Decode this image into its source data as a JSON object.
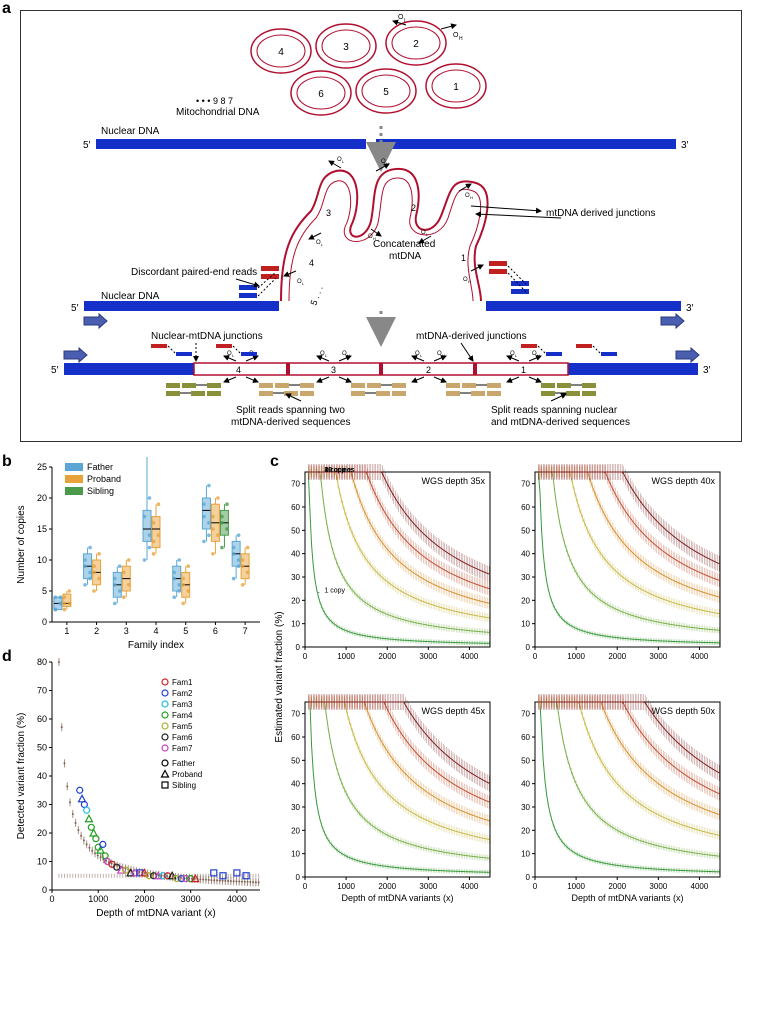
{
  "panelA": {
    "label": "a",
    "nuclearDNA": "Nuclear DNA",
    "mtDNA_text": "Mitochondrial DNA",
    "concatenated": "Concatenated mtDNA",
    "discordant": "Discordant paired-end reads",
    "mtJunctions": "mtDNA derived junctions",
    "nucMtJunctions": "Nuclear-mtDNA junctions",
    "mtDerivedJunctions": "mtDNA-derived junctions",
    "splitTwo": "Split reads spanning two mtDNA-derived sequences",
    "splitNuclear": "Split reads spanning nuclear and mtDNA-derived sequences",
    "five_prime": "5′",
    "three_prime": "3′",
    "OL": "O",
    "OL_sub": "L",
    "OH": "O",
    "OH_sub": "H",
    "dots": "• • •  9  8  7",
    "circle_numbers": [
      "1",
      "2",
      "3",
      "4",
      "5",
      "6"
    ],
    "colors": {
      "nuclear": "#1530c9",
      "mtdna": "#b01030",
      "read_red": "#c02020",
      "read_blue": "#1530c9",
      "read_olive": "#8a8f3a",
      "read_tan": "#c9a66b",
      "arrow_fill": "#4a5fb0"
    }
  },
  "panelB": {
    "label": "b",
    "ylabel": "Number of copies",
    "xlabel": "Family index",
    "xticks": [
      "1",
      "2",
      "3",
      "4",
      "5",
      "6",
      "7"
    ],
    "yticks": [
      "0",
      "5",
      "10",
      "15",
      "20",
      "25"
    ],
    "ylim": [
      0,
      25
    ],
    "legend": [
      {
        "name": "Father",
        "color": "#5aa7d6"
      },
      {
        "name": "Proband",
        "color": "#e8a23a"
      },
      {
        "name": "Sibling",
        "color": "#4a9a4a"
      }
    ],
    "data": [
      {
        "family": 1,
        "father": {
          "q1": 2,
          "med": 3,
          "q3": 4,
          "pts": [
            2,
            3,
            4,
            3,
            2,
            4
          ]
        },
        "proband": {
          "q1": 2.5,
          "med": 3,
          "q3": 4.5,
          "pts": [
            2,
            3,
            4,
            5,
            3
          ]
        },
        "sibling": null
      },
      {
        "family": 2,
        "father": {
          "q1": 7,
          "med": 9,
          "q3": 11,
          "pts": [
            6,
            8,
            10,
            12,
            9,
            7
          ]
        },
        "proband": {
          "q1": 6,
          "med": 8,
          "q3": 10,
          "pts": [
            5,
            7,
            9,
            11,
            8
          ]
        },
        "sibling": null
      },
      {
        "family": 3,
        "father": {
          "q1": 4,
          "med": 6,
          "q3": 8,
          "pts": [
            3,
            5,
            7,
            9,
            6
          ]
        },
        "proband": {
          "q1": 5,
          "med": 7,
          "q3": 9,
          "pts": [
            4,
            6,
            8,
            10
          ]
        },
        "sibling": null
      },
      {
        "family": 4,
        "father": {
          "q1": 13,
          "med": 15,
          "q3": 18,
          "pts": [
            10,
            14,
            17,
            20,
            28,
            12
          ]
        },
        "proband": {
          "q1": 12,
          "med": 15,
          "q3": 17,
          "pts": [
            11,
            14,
            16,
            19,
            13
          ]
        },
        "sibling": null
      },
      {
        "family": 5,
        "father": {
          "q1": 5,
          "med": 7,
          "q3": 9,
          "pts": [
            4,
            6,
            8,
            10,
            7,
            5
          ]
        },
        "proband": {
          "q1": 4,
          "med": 6,
          "q3": 8,
          "pts": [
            3,
            5,
            7,
            9,
            6
          ]
        },
        "sibling": null
      },
      {
        "family": 6,
        "father": {
          "q1": 15,
          "med": 18,
          "q3": 20,
          "pts": [
            13,
            16,
            19,
            22,
            17,
            14
          ]
        },
        "proband": {
          "q1": 13,
          "med": 16,
          "q3": 19,
          "pts": [
            11,
            14,
            17,
            20,
            15
          ]
        },
        "sibling": {
          "q1": 14,
          "med": 16,
          "q3": 18,
          "pts": [
            12,
            15,
            17,
            19,
            16
          ]
        }
      },
      {
        "family": 7,
        "father": {
          "q1": 9,
          "med": 11,
          "q3": 13,
          "pts": [
            7,
            10,
            12,
            14,
            11,
            9
          ]
        },
        "proband": {
          "q1": 7,
          "med": 9,
          "q3": 11,
          "pts": [
            6,
            8,
            10,
            12,
            9
          ]
        },
        "sibling": null
      }
    ]
  },
  "panelC": {
    "label": "c",
    "ylabel": "Estimated variant fraction (%)",
    "xlabel": "Depth of mtDNA variants (x)",
    "xticks": [
      "0",
      "1000",
      "2000",
      "3000",
      "4000"
    ],
    "yticks": [
      "0",
      "10",
      "20",
      "30",
      "40",
      "50",
      "60",
      "70"
    ],
    "xlim": [
      0,
      4500
    ],
    "ylim": [
      0,
      75
    ],
    "panels": [
      {
        "title": "WGS depth 35x"
      },
      {
        "title": "WGS depth 40x"
      },
      {
        "title": "WGS depth 45x"
      },
      {
        "title": "WGS depth 50x"
      }
    ],
    "copy_labels": [
      "20 copies",
      "16 copies",
      "12 copies",
      "8 copies",
      "4 copies",
      "1 copy"
    ],
    "copy_curves": [
      1,
      4,
      8,
      12,
      16,
      20
    ],
    "curve_colors": [
      "#3a9a3a",
      "#7ab04a",
      "#c9b94a",
      "#d89030",
      "#c05030",
      "#802020"
    ],
    "depthFactor": {
      "35x": 70,
      "40x": 80,
      "45x": 90,
      "50x": 100
    }
  },
  "panelD": {
    "label": "d",
    "ylabel": "Detected variant fraction (%)",
    "xlabel": "Depth of mtDNA variant (x)",
    "xticks": [
      "0",
      "1000",
      "2000",
      "3000",
      "4000"
    ],
    "yticks": [
      "0",
      "10",
      "20",
      "30",
      "40",
      "50",
      "60",
      "70",
      "80"
    ],
    "xlim": [
      0,
      4500
    ],
    "ylim": [
      0,
      80
    ],
    "fam_colors": {
      "Fam1": "#d02020",
      "Fam2": "#2040d0",
      "Fam3": "#20c0e0",
      "Fam4": "#20a020",
      "Fam5": "#b0b030",
      "Fam6": "#202020",
      "Fam7": "#c040c0"
    },
    "member_markers": {
      "Father": "circle",
      "Proband": "triangle",
      "Sibling": "square"
    },
    "legend_fams": [
      "Fam1",
      "Fam2",
      "Fam3",
      "Fam4",
      "Fam5",
      "Fam6",
      "Fam7"
    ],
    "legend_members": [
      "Father",
      "Proband",
      "Sibling"
    ],
    "curve_color": "#806050",
    "points": [
      {
        "x": 600,
        "y": 35,
        "fam": "Fam2",
        "m": "circle"
      },
      {
        "x": 650,
        "y": 32,
        "fam": "Fam2",
        "m": "triangle"
      },
      {
        "x": 700,
        "y": 30,
        "fam": "Fam2",
        "m": "circle"
      },
      {
        "x": 750,
        "y": 28,
        "fam": "Fam3",
        "m": "circle"
      },
      {
        "x": 800,
        "y": 25,
        "fam": "Fam4",
        "m": "triangle"
      },
      {
        "x": 850,
        "y": 22,
        "fam": "Fam4",
        "m": "circle"
      },
      {
        "x": 900,
        "y": 20,
        "fam": "Fam4",
        "m": "triangle"
      },
      {
        "x": 950,
        "y": 18,
        "fam": "Fam4",
        "m": "circle"
      },
      {
        "x": 1000,
        "y": 15,
        "fam": "Fam4",
        "m": "circle"
      },
      {
        "x": 1050,
        "y": 14,
        "fam": "Fam4",
        "m": "triangle"
      },
      {
        "x": 1100,
        "y": 16,
        "fam": "Fam2",
        "m": "circle"
      },
      {
        "x": 1150,
        "y": 12,
        "fam": "Fam4",
        "m": "circle"
      },
      {
        "x": 1200,
        "y": 10,
        "fam": "Fam7",
        "m": "circle"
      },
      {
        "x": 1300,
        "y": 9,
        "fam": "Fam1",
        "m": "circle"
      },
      {
        "x": 1400,
        "y": 8,
        "fam": "Fam6",
        "m": "circle"
      },
      {
        "x": 1500,
        "y": 7,
        "fam": "Fam7",
        "m": "triangle"
      },
      {
        "x": 1600,
        "y": 7,
        "fam": "Fam5",
        "m": "circle"
      },
      {
        "x": 1700,
        "y": 6,
        "fam": "Fam6",
        "m": "triangle"
      },
      {
        "x": 1800,
        "y": 6,
        "fam": "Fam7",
        "m": "circle"
      },
      {
        "x": 1900,
        "y": 6,
        "fam": "Fam2",
        "m": "square"
      },
      {
        "x": 2000,
        "y": 6,
        "fam": "Fam1",
        "m": "triangle"
      },
      {
        "x": 2100,
        "y": 5,
        "fam": "Fam5",
        "m": "circle"
      },
      {
        "x": 2200,
        "y": 5,
        "fam": "Fam6",
        "m": "circle"
      },
      {
        "x": 2300,
        "y": 5,
        "fam": "Fam7",
        "m": "triangle"
      },
      {
        "x": 2400,
        "y": 5,
        "fam": "Fam3",
        "m": "circle"
      },
      {
        "x": 2500,
        "y": 5,
        "fam": "Fam1",
        "m": "circle"
      },
      {
        "x": 2600,
        "y": 5,
        "fam": "Fam6",
        "m": "triangle"
      },
      {
        "x": 2700,
        "y": 4,
        "fam": "Fam5",
        "m": "circle"
      },
      {
        "x": 2800,
        "y": 4,
        "fam": "Fam2",
        "m": "circle"
      },
      {
        "x": 2900,
        "y": 4,
        "fam": "Fam7",
        "m": "circle"
      },
      {
        "x": 3000,
        "y": 4,
        "fam": "Fam4",
        "m": "circle"
      },
      {
        "x": 3100,
        "y": 4,
        "fam": "Fam1",
        "m": "triangle"
      },
      {
        "x": 3500,
        "y": 6,
        "fam": "Fam2",
        "m": "square"
      },
      {
        "x": 3700,
        "y": 5,
        "fam": "Fam2",
        "m": "square"
      },
      {
        "x": 4000,
        "y": 6,
        "fam": "Fam2",
        "m": "square"
      },
      {
        "x": 4200,
        "y": 5,
        "fam": "Fam2",
        "m": "square"
      }
    ]
  }
}
